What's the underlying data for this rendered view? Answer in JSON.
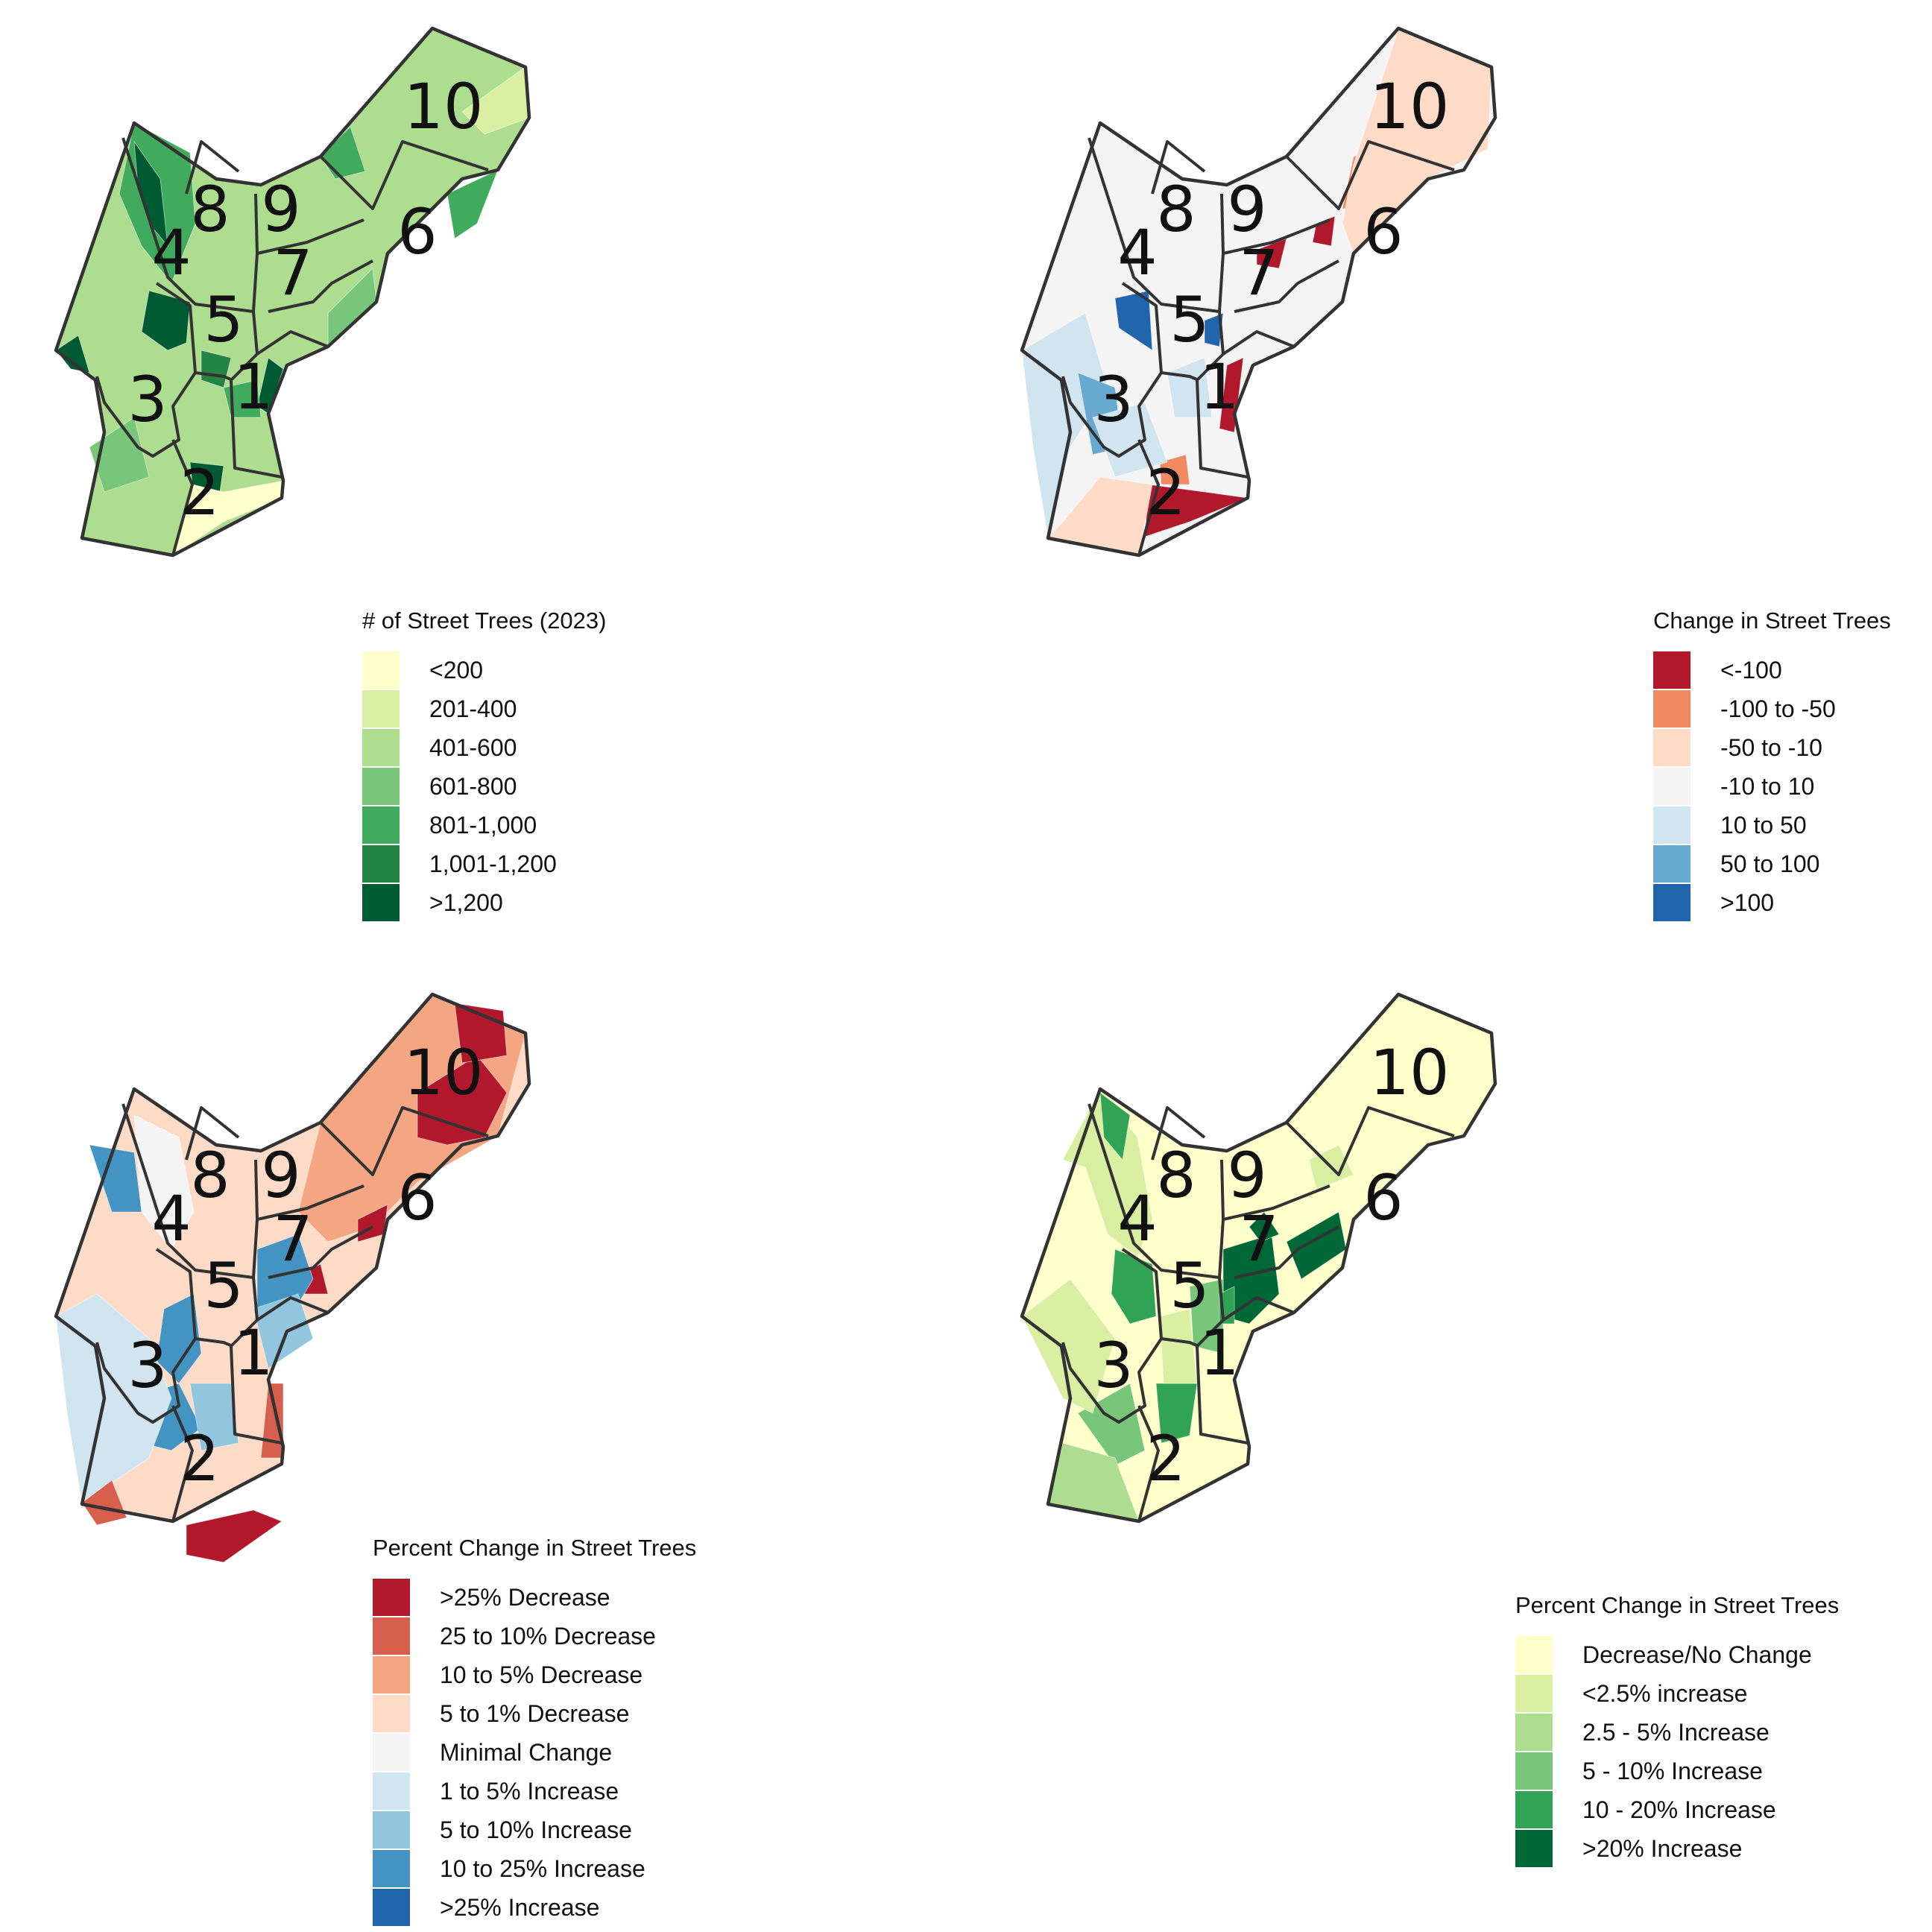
{
  "district_labels": [
    "1",
    "2",
    "3",
    "4",
    "5",
    "6",
    "7",
    "8",
    "9",
    "10"
  ],
  "panels": [
    {
      "id": "tree-count",
      "legend_title": "# of Street Trees (2023)",
      "legend": [
        {
          "label": "<200",
          "color": "#ffffcc"
        },
        {
          "label": "201-400",
          "color": "#d9f0a3"
        },
        {
          "label": "401-600",
          "color": "#addd8e"
        },
        {
          "label": "601-800",
          "color": "#78c679"
        },
        {
          "label": "801-1,000",
          "color": "#41ab5d"
        },
        {
          "label": "1,001-1,200",
          "color": "#238443"
        },
        {
          "label": ">1,200",
          "color": "#005a32"
        }
      ]
    },
    {
      "id": "tree-change",
      "legend_title": "Change in Street Trees",
      "legend": [
        {
          "label": "<-100",
          "color": "#b2182b"
        },
        {
          "label": "-100 to -50",
          "color": "#ef8a62"
        },
        {
          "label": "-50 to -10",
          "color": "#fddbc7"
        },
        {
          "label": "-10 to 10",
          "color": "#f4f4f4"
        },
        {
          "label": "10 to 50",
          "color": "#d1e5f0"
        },
        {
          "label": "50 to 100",
          "color": "#67a9cf"
        },
        {
          "label": ">100",
          "color": "#2166ac"
        }
      ]
    },
    {
      "id": "percent-change-diverging",
      "legend_title": "Percent Change in Street Trees",
      "legend": [
        {
          "label": ">25% Decrease",
          "color": "#b2182b"
        },
        {
          "label": "25 to 10% Decrease",
          "color": "#d6604d"
        },
        {
          "label": "10 to 5% Decrease",
          "color": "#f4a582"
        },
        {
          "label": "5 to 1% Decrease",
          "color": "#fddbc7"
        },
        {
          "label": "Minimal Change",
          "color": "#f4f4f4"
        },
        {
          "label": "1 to 5% Increase",
          "color": "#d1e5f0"
        },
        {
          "label": "5 to 10% Increase",
          "color": "#92c5de"
        },
        {
          "label": "10 to 25% Increase",
          "color": "#4393c3"
        },
        {
          "label": ">25% Increase",
          "color": "#2166ac"
        }
      ]
    },
    {
      "id": "percent-change-increase",
      "legend_title": "Percent Change in Street Trees",
      "legend": [
        {
          "label": "Decrease/No Change",
          "color": "#ffffcc"
        },
        {
          "label": "<2.5% increase",
          "color": "#d9f0a3"
        },
        {
          "label": "2.5 - 5% Increase",
          "color": "#addd8e"
        },
        {
          "label": "5 - 10%  Increase",
          "color": "#78c679"
        },
        {
          "label": "10 - 20% Increase",
          "color": "#31a354"
        },
        {
          "label": ">20% Increase",
          "color": "#006837"
        }
      ]
    }
  ]
}
